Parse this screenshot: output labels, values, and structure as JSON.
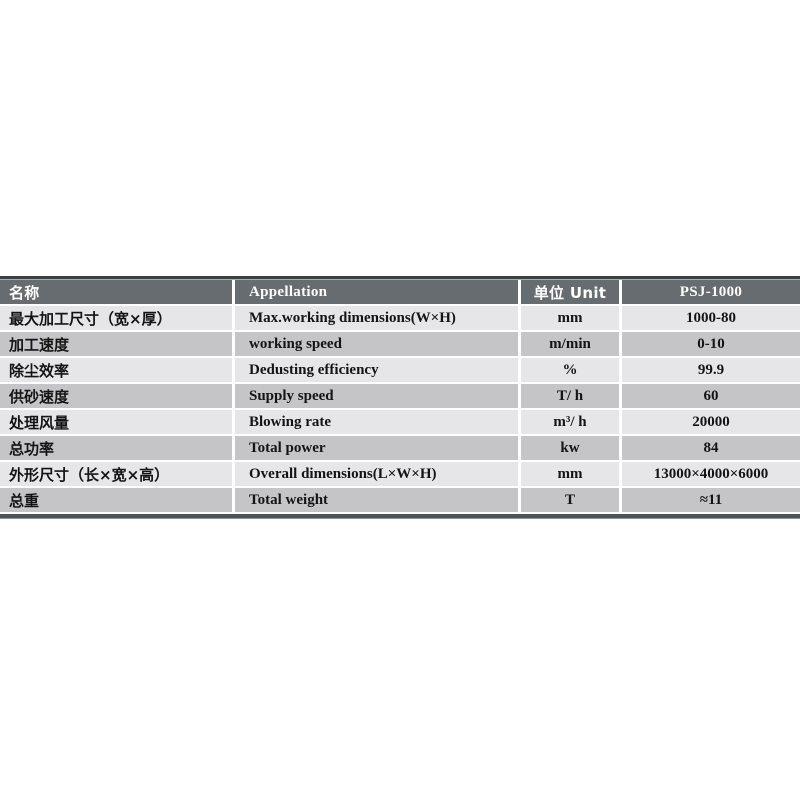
{
  "table": {
    "headers": {
      "name": "名称",
      "appellation": "Appellation",
      "unit": "单位 Unit",
      "model": "PSJ-1000"
    },
    "rows": [
      {
        "name": "最大加工尺寸（宽×厚）",
        "appellation": "Max.working dimensions(W×H)",
        "unit": "mm",
        "value": "1000-80"
      },
      {
        "name": "加工速度",
        "appellation": "working speed",
        "unit": "m/min",
        "value": "0-10"
      },
      {
        "name": "除尘效率",
        "appellation": "Dedusting efficiency",
        "unit": "%",
        "value": "99.9"
      },
      {
        "name": "供砂速度",
        "appellation": "Supply speed",
        "unit": "T/ h",
        "value": "60"
      },
      {
        "name": "处理风量",
        "appellation": "Blowing rate",
        "unit": "m³/ h",
        "value": "20000"
      },
      {
        "name": "总功率",
        "appellation": "Total power",
        "unit": "kw",
        "value": "84"
      },
      {
        "name": "外形尺寸（长×宽×高）",
        "appellation": "Overall dimensions(L×W×H)",
        "unit": "mm",
        "value": "13000×4000×6000"
      },
      {
        "name": "总重",
        "appellation": "Total weight",
        "unit": "T",
        "value": "≈11"
      }
    ],
    "colors": {
      "header_bg": "#676c70",
      "header_text": "#ffffff",
      "row_light_bg": "#e6e6e8",
      "row_dark_bg": "#c5c5c7",
      "text": "#141414",
      "top_border": "#3b4043",
      "bottom_border": "#4b5457",
      "separator": "#ffffff"
    }
  }
}
